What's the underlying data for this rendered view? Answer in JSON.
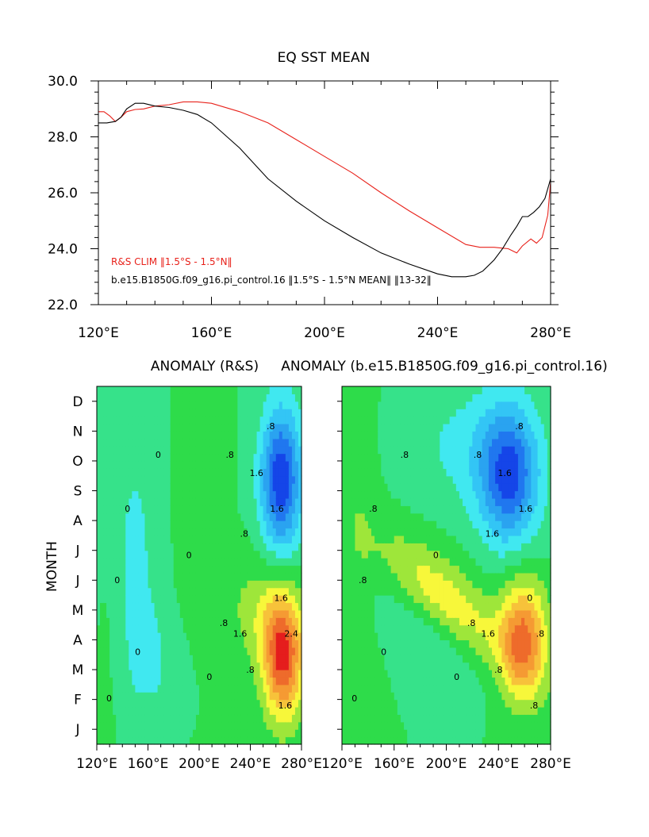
{
  "chart_data": [
    {
      "type": "line",
      "title": "EQ SST MEAN",
      "xlabel": "",
      "ylabel": "",
      "xlim": [
        120,
        280
      ],
      "ylim": [
        22,
        30
      ],
      "x_tick_labels": [
        "120°E",
        "160°E",
        "200°E",
        "240°E",
        "280°E"
      ],
      "x_tick_values": [
        120,
        160,
        200,
        240,
        280
      ],
      "y_tick_labels": [
        "22.0",
        "24.0",
        "26.0",
        "28.0",
        "30.0"
      ],
      "y_tick_values": [
        22,
        24,
        26,
        28,
        30
      ],
      "legend": [
        {
          "label": "R&S CLIM ‖1.5°S - 1.5°N‖",
          "color": "#e8221b"
        },
        {
          "label": "b.e15.B1850G.f09_g16.pi_control.16 ‖1.5°S - 1.5°N MEAN‖ ‖13-32‖",
          "color": "#000000"
        }
      ],
      "series": [
        {
          "name": "R&S CLIM",
          "color": "#e8221b",
          "x": [
            120,
            122,
            124,
            126,
            128,
            130,
            133,
            136,
            140,
            145,
            150,
            155,
            160,
            170,
            180,
            190,
            200,
            210,
            220,
            230,
            240,
            250,
            255,
            260,
            265,
            268,
            270,
            273,
            275,
            277,
            279,
            280
          ],
          "y": [
            28.9,
            28.9,
            28.75,
            28.55,
            28.7,
            28.9,
            28.98,
            29.0,
            29.1,
            29.15,
            29.25,
            29.25,
            29.2,
            28.9,
            28.5,
            27.9,
            27.3,
            26.7,
            26.0,
            25.35,
            24.75,
            24.15,
            24.05,
            24.05,
            24.0,
            23.85,
            24.1,
            24.35,
            24.2,
            24.4,
            25.2,
            26.4
          ]
        },
        {
          "name": "b.e15.B1850G.f09_g16.pi_control.16",
          "color": "#000000",
          "x": [
            120,
            123,
            126,
            128,
            130,
            133,
            136,
            140,
            145,
            150,
            155,
            160,
            170,
            180,
            190,
            200,
            210,
            220,
            230,
            240,
            245,
            250,
            253,
            256,
            260,
            263,
            266,
            268,
            270,
            272,
            274,
            276,
            278,
            280
          ],
          "y": [
            28.5,
            28.5,
            28.55,
            28.7,
            29.0,
            29.2,
            29.2,
            29.1,
            29.05,
            28.95,
            28.8,
            28.5,
            27.6,
            26.5,
            25.7,
            25.0,
            24.4,
            23.85,
            23.45,
            23.1,
            23.0,
            23.0,
            23.05,
            23.2,
            23.6,
            24.0,
            24.5,
            24.8,
            25.15,
            25.15,
            25.3,
            25.5,
            25.8,
            26.5
          ]
        }
      ]
    },
    {
      "type": "heatmap",
      "title": "ANOMALY (R&S)",
      "ylabel": "MONTH",
      "xlim": [
        120,
        280
      ],
      "x_tick_labels": [
        "120°E",
        "160°E",
        "200°E",
        "240°E",
        "280°E"
      ],
      "y_tick_labels": [
        "J",
        "F",
        "M",
        "A",
        "M",
        "J",
        "J",
        "A",
        "S",
        "O",
        "N",
        "D"
      ],
      "contour_labels": [
        ".8",
        "1.6",
        ".8",
        "0",
        "0",
        "1.6",
        "2.4",
        ".8",
        "1.6",
        "1.6",
        ".8",
        "0",
        "0",
        "0",
        "0",
        ".8",
        "1.6",
        "0"
      ],
      "features": [
        {
          "name": "cold anomaly",
          "lon": 265,
          "month_index": 8.3,
          "peak": -2.4
        },
        {
          "name": "warm anomaly",
          "lon": 265,
          "month_index": 2.3,
          "peak": 2.6
        }
      ]
    },
    {
      "type": "heatmap",
      "title": "ANOMALY (b.e15.B1850G.f09_g16.pi_control.16)",
      "xlim": [
        120,
        280
      ],
      "x_tick_labels": [
        "120°E",
        "160°E",
        "200°E",
        "240°E",
        "280°E"
      ],
      "y_tick_labels": [
        "J",
        "F",
        "M",
        "A",
        "M",
        "J",
        "J",
        "A",
        "S",
        "O",
        "N",
        "D"
      ],
      "contour_labels": [
        ".8",
        "1.6",
        "1.6",
        ".8",
        ".8",
        "0",
        ".8",
        ".8",
        "1.6",
        "1.6",
        ".8",
        ".8",
        "0",
        "0",
        "0",
        ".8",
        ".8",
        "0"
      ],
      "features": [
        {
          "name": "cold anomaly",
          "lon": 248,
          "month_index": 8.4,
          "peak": -2.0
        },
        {
          "name": "warm anomaly",
          "lon": 257,
          "month_index": 2.8,
          "peak": 2.1
        },
        {
          "name": "warm tongue",
          "lon": 190,
          "month_index": 5.6,
          "peak": 1.2
        }
      ]
    }
  ]
}
